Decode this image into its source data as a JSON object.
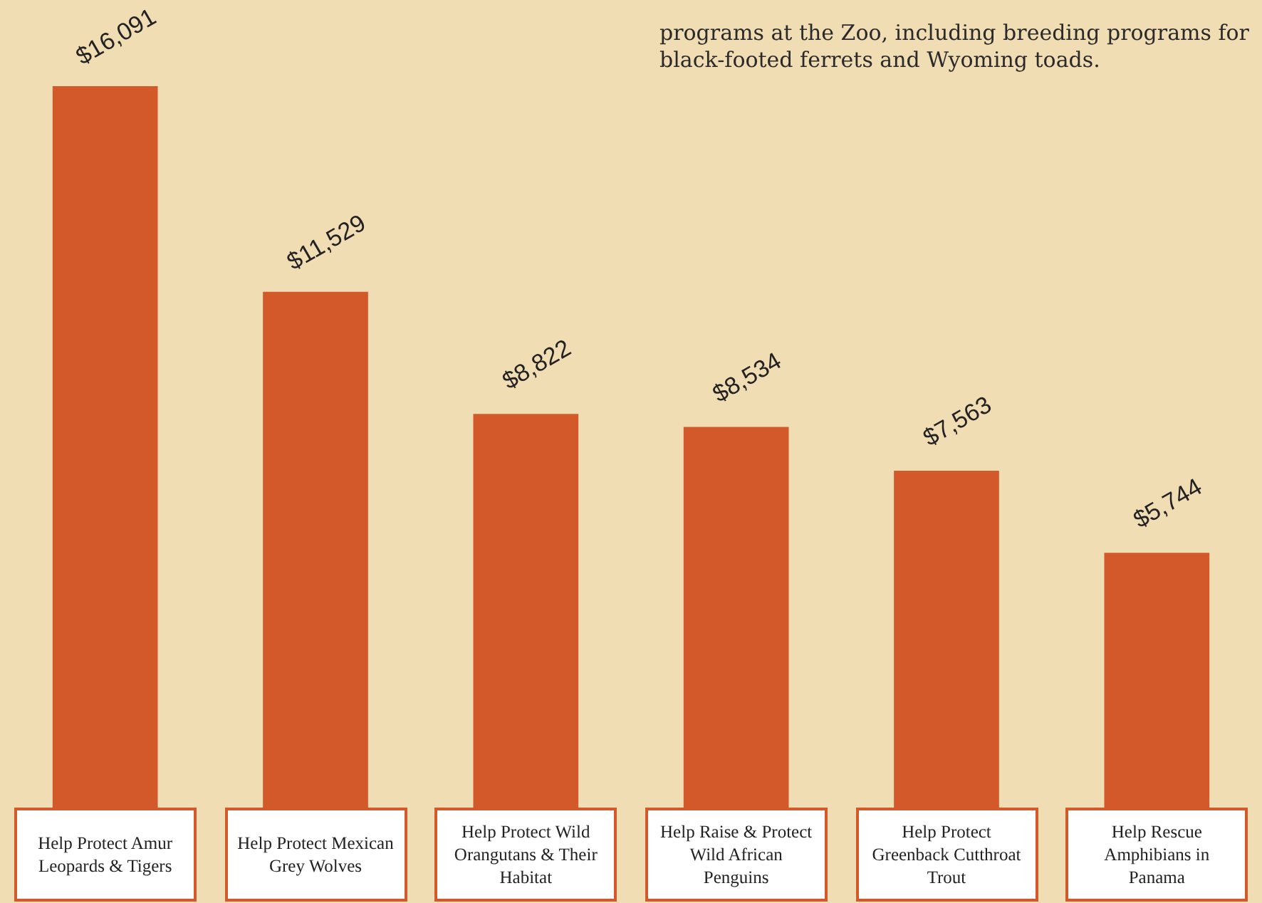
{
  "chart_data": {
    "type": "bar",
    "categories": [
      "Help Protect Amur Leopards & Tigers",
      "Help Protect Mexican Grey Wolves",
      "Help Protect Wild Orangutans & Their Habitat",
      "Help Raise & Protect Wild African Penguins",
      "Help Protect Greenback Cutthroat Trout",
      "Help Rescue Amphibians in Panama"
    ],
    "values": [
      16091,
      11529,
      8822,
      8534,
      7563,
      5744
    ],
    "value_labels": [
      "$16,091",
      "$11,529",
      "$8,822",
      "$8,534",
      "$7,563",
      "$5,744"
    ],
    "color": "#d4592a",
    "tick_labels": "x",
    "grid": false,
    "legend": false,
    "annotations": [
      "programs at the Zoo, including breeding programs for black-footed ferrets and Wyoming toads."
    ]
  }
}
